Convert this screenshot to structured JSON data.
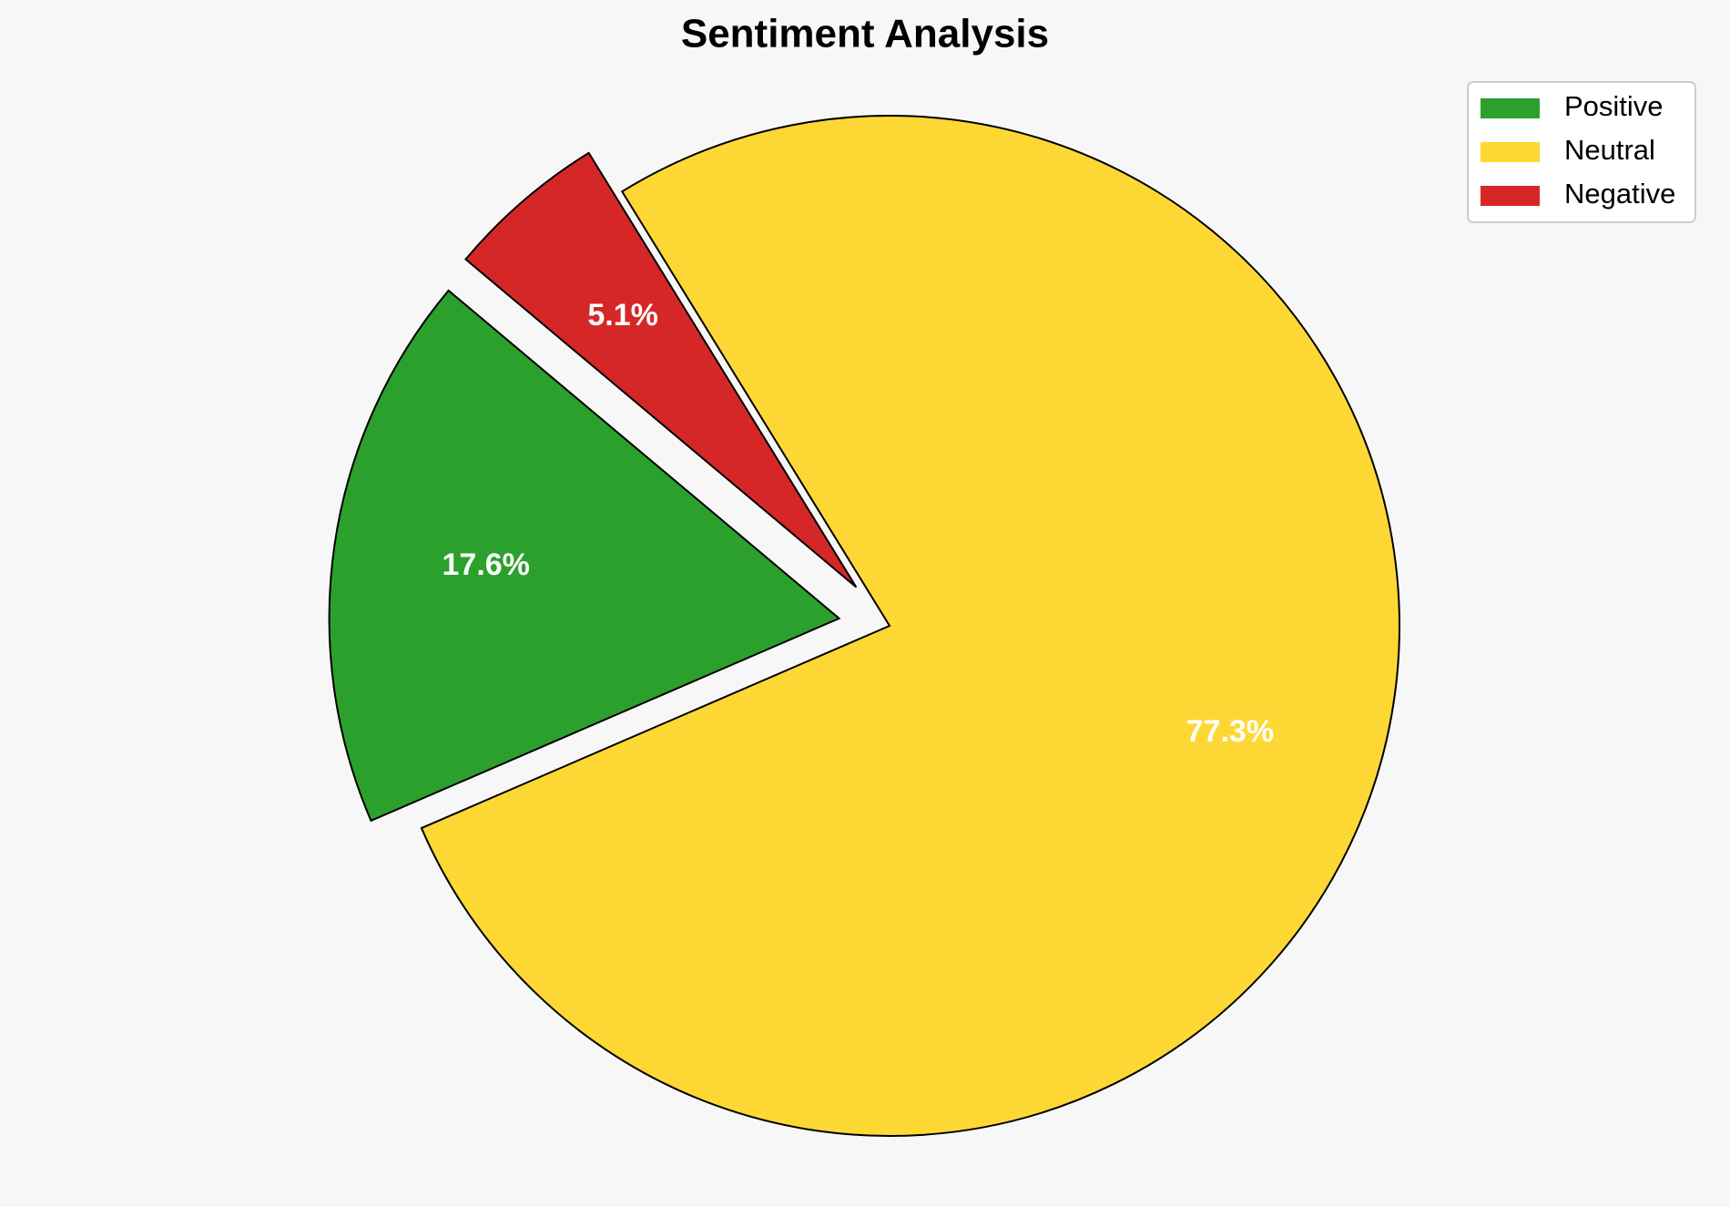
{
  "chart_data": {
    "type": "pie",
    "title": "Sentiment Analysis",
    "categories": [
      "Positive",
      "Neutral",
      "Negative"
    ],
    "values": [
      17.6,
      77.3,
      5.1
    ],
    "value_labels": [
      "17.6%",
      "77.3%",
      "5.1%"
    ],
    "colors": [
      "#2ca02c",
      "#fdd835",
      "#d62728"
    ],
    "legend": "upper right"
  }
}
